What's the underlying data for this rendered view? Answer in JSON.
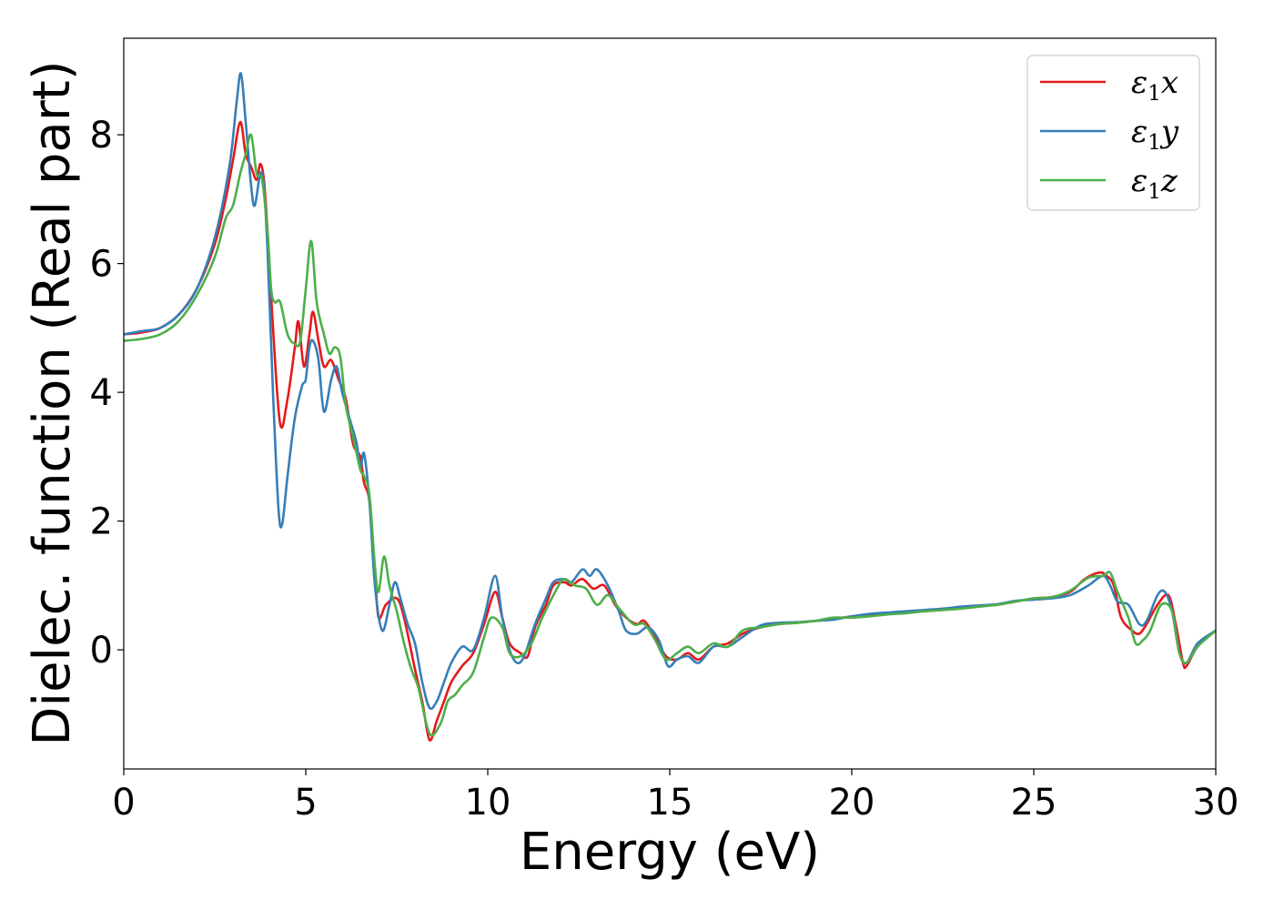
{
  "chart_data": {
    "type": "line",
    "xlabel": "Energy (eV)",
    "ylabel": "Dielec. function (Real part)",
    "xlim": [
      0,
      30
    ],
    "ylim": [
      -1.85,
      9.5
    ],
    "xticks": [
      "0",
      "5",
      "10",
      "15",
      "20",
      "25",
      "30"
    ],
    "xtick_values": [
      0,
      5,
      10,
      15,
      20,
      25,
      30
    ],
    "yticks": [
      "0",
      "2",
      "4",
      "6",
      "8"
    ],
    "ytick_values": [
      0,
      2,
      4,
      6,
      8
    ],
    "grid": false,
    "legend_position": "top-right",
    "series": [
      {
        "name": "ε₁x",
        "legend_base": "ε",
        "legend_sub": "1",
        "legend_var": "x",
        "color": "#e41a1c",
        "points": [
          [
            0,
            4.9
          ],
          [
            0.5,
            4.93
          ],
          [
            1,
            5.0
          ],
          [
            1.5,
            5.2
          ],
          [
            2,
            5.6
          ],
          [
            2.5,
            6.3
          ],
          [
            2.8,
            7.0
          ],
          [
            3.0,
            7.6
          ],
          [
            3.2,
            8.2
          ],
          [
            3.35,
            7.7
          ],
          [
            3.5,
            7.5
          ],
          [
            3.65,
            7.3
          ],
          [
            3.75,
            7.55
          ],
          [
            3.85,
            7.3
          ],
          [
            3.95,
            6.5
          ],
          [
            4.1,
            5.0
          ],
          [
            4.3,
            3.5
          ],
          [
            4.5,
            3.9
          ],
          [
            4.7,
            4.7
          ],
          [
            4.8,
            5.1
          ],
          [
            4.95,
            4.4
          ],
          [
            5.1,
            4.9
          ],
          [
            5.2,
            5.25
          ],
          [
            5.35,
            4.8
          ],
          [
            5.5,
            4.4
          ],
          [
            5.7,
            4.5
          ],
          [
            5.9,
            4.2
          ],
          [
            6.1,
            3.9
          ],
          [
            6.3,
            3.2
          ],
          [
            6.5,
            3.0
          ],
          [
            6.6,
            2.6
          ],
          [
            6.75,
            2.3
          ],
          [
            6.9,
            1.2
          ],
          [
            7.0,
            0.5
          ],
          [
            7.2,
            0.7
          ],
          [
            7.5,
            0.8
          ],
          [
            7.7,
            0.5
          ],
          [
            8.0,
            -0.3
          ],
          [
            8.2,
            -0.8
          ],
          [
            8.4,
            -1.4
          ],
          [
            8.6,
            -1.1
          ],
          [
            8.8,
            -0.8
          ],
          [
            9.0,
            -0.5
          ],
          [
            9.3,
            -0.25
          ],
          [
            9.6,
            -0.05
          ],
          [
            9.9,
            0.4
          ],
          [
            10.2,
            0.9
          ],
          [
            10.4,
            0.5
          ],
          [
            10.6,
            0.1
          ],
          [
            10.9,
            -0.05
          ],
          [
            11.1,
            -0.1
          ],
          [
            11.3,
            0.35
          ],
          [
            11.6,
            0.7
          ],
          [
            11.8,
            1.0
          ],
          [
            12.1,
            1.05
          ],
          [
            12.3,
            1.0
          ],
          [
            12.6,
            1.1
          ],
          [
            12.9,
            0.95
          ],
          [
            13.2,
            1.0
          ],
          [
            13.5,
            0.7
          ],
          [
            13.8,
            0.5
          ],
          [
            14.1,
            0.4
          ],
          [
            14.3,
            0.45
          ],
          [
            14.6,
            0.2
          ],
          [
            14.9,
            -0.1
          ],
          [
            15.2,
            -0.15
          ],
          [
            15.5,
            -0.05
          ],
          [
            15.8,
            -0.15
          ],
          [
            16.2,
            0.05
          ],
          [
            16.6,
            0.1
          ],
          [
            17.0,
            0.25
          ],
          [
            17.5,
            0.35
          ],
          [
            18,
            0.4
          ],
          [
            18.5,
            0.42
          ],
          [
            19,
            0.45
          ],
          [
            19.5,
            0.48
          ],
          [
            20,
            0.52
          ],
          [
            20.5,
            0.55
          ],
          [
            21,
            0.57
          ],
          [
            21.5,
            0.58
          ],
          [
            22,
            0.6
          ],
          [
            22.5,
            0.62
          ],
          [
            23,
            0.65
          ],
          [
            23.5,
            0.68
          ],
          [
            24,
            0.7
          ],
          [
            24.5,
            0.75
          ],
          [
            25,
            0.8
          ],
          [
            25.5,
            0.82
          ],
          [
            26,
            0.9
          ],
          [
            26.4,
            1.1
          ],
          [
            26.8,
            1.2
          ],
          [
            27.0,
            1.15
          ],
          [
            27.2,
            1.0
          ],
          [
            27.4,
            0.5
          ],
          [
            27.7,
            0.3
          ],
          [
            27.9,
            0.25
          ],
          [
            28.1,
            0.4
          ],
          [
            28.4,
            0.7
          ],
          [
            28.7,
            0.85
          ],
          [
            28.9,
            0.4
          ],
          [
            29.1,
            -0.2
          ],
          [
            29.2,
            -0.25
          ],
          [
            29.5,
            0.05
          ],
          [
            30,
            0.3
          ]
        ]
      },
      {
        "name": "ε₁y",
        "legend_base": "ε",
        "legend_sub": "1",
        "legend_var": "y",
        "color": "#377eb8",
        "points": [
          [
            0,
            4.9
          ],
          [
            0.5,
            4.95
          ],
          [
            1,
            5.0
          ],
          [
            1.5,
            5.2
          ],
          [
            2,
            5.6
          ],
          [
            2.5,
            6.4
          ],
          [
            2.9,
            7.5
          ],
          [
            3.1,
            8.5
          ],
          [
            3.22,
            8.95
          ],
          [
            3.35,
            8.2
          ],
          [
            3.5,
            7.2
          ],
          [
            3.6,
            6.9
          ],
          [
            3.75,
            7.4
          ],
          [
            3.85,
            7.2
          ],
          [
            3.95,
            6.2
          ],
          [
            4.1,
            4.0
          ],
          [
            4.25,
            2.2
          ],
          [
            4.35,
            1.95
          ],
          [
            4.5,
            2.7
          ],
          [
            4.7,
            3.6
          ],
          [
            4.9,
            4.1
          ],
          [
            5.0,
            4.2
          ],
          [
            5.1,
            4.7
          ],
          [
            5.2,
            4.8
          ],
          [
            5.35,
            4.5
          ],
          [
            5.5,
            3.7
          ],
          [
            5.7,
            4.2
          ],
          [
            5.85,
            4.4
          ],
          [
            6.0,
            4.0
          ],
          [
            6.2,
            3.6
          ],
          [
            6.4,
            3.2
          ],
          [
            6.5,
            2.8
          ],
          [
            6.6,
            3.05
          ],
          [
            6.75,
            2.3
          ],
          [
            6.9,
            1.0
          ],
          [
            7.1,
            0.3
          ],
          [
            7.3,
            0.7
          ],
          [
            7.45,
            1.05
          ],
          [
            7.6,
            0.8
          ],
          [
            7.8,
            0.4
          ],
          [
            8.0,
            0.1
          ],
          [
            8.2,
            -0.5
          ],
          [
            8.4,
            -0.9
          ],
          [
            8.6,
            -0.8
          ],
          [
            8.8,
            -0.5
          ],
          [
            9.0,
            -0.2
          ],
          [
            9.3,
            0.05
          ],
          [
            9.6,
            0.0
          ],
          [
            9.9,
            0.5
          ],
          [
            10.2,
            1.15
          ],
          [
            10.4,
            0.5
          ],
          [
            10.6,
            0.0
          ],
          [
            10.8,
            -0.2
          ],
          [
            11.0,
            -0.1
          ],
          [
            11.3,
            0.4
          ],
          [
            11.6,
            0.8
          ],
          [
            11.8,
            1.05
          ],
          [
            12.1,
            1.1
          ],
          [
            12.3,
            1.05
          ],
          [
            12.6,
            1.25
          ],
          [
            12.8,
            1.15
          ],
          [
            13.0,
            1.25
          ],
          [
            13.3,
            1.0
          ],
          [
            13.6,
            0.6
          ],
          [
            13.8,
            0.3
          ],
          [
            14.1,
            0.25
          ],
          [
            14.4,
            0.35
          ],
          [
            14.7,
            0.15
          ],
          [
            14.95,
            -0.25
          ],
          [
            15.2,
            -0.15
          ],
          [
            15.5,
            -0.1
          ],
          [
            15.8,
            -0.2
          ],
          [
            16.2,
            0.05
          ],
          [
            16.6,
            0.05
          ],
          [
            17.0,
            0.2
          ],
          [
            17.5,
            0.38
          ],
          [
            18,
            0.42
          ],
          [
            18.5,
            0.43
          ],
          [
            19,
            0.45
          ],
          [
            19.5,
            0.47
          ],
          [
            20,
            0.52
          ],
          [
            20.5,
            0.56
          ],
          [
            21,
            0.58
          ],
          [
            21.5,
            0.6
          ],
          [
            22,
            0.62
          ],
          [
            22.5,
            0.64
          ],
          [
            23,
            0.67
          ],
          [
            23.5,
            0.69
          ],
          [
            24,
            0.71
          ],
          [
            24.5,
            0.76
          ],
          [
            25,
            0.78
          ],
          [
            25.5,
            0.8
          ],
          [
            26,
            0.85
          ],
          [
            26.5,
            1.0
          ],
          [
            26.9,
            1.15
          ],
          [
            27.1,
            1.0
          ],
          [
            27.3,
            0.75
          ],
          [
            27.6,
            0.7
          ],
          [
            27.9,
            0.4
          ],
          [
            28.1,
            0.45
          ],
          [
            28.4,
            0.85
          ],
          [
            28.6,
            0.9
          ],
          [
            28.8,
            0.6
          ],
          [
            29.0,
            -0.05
          ],
          [
            29.2,
            -0.2
          ],
          [
            29.5,
            0.1
          ],
          [
            30,
            0.3
          ]
        ]
      },
      {
        "name": "ε₁z",
        "legend_base": "ε",
        "legend_sub": "1",
        "legend_var": "z",
        "color": "#4daf4a",
        "points": [
          [
            0,
            4.8
          ],
          [
            0.5,
            4.83
          ],
          [
            1,
            4.9
          ],
          [
            1.5,
            5.1
          ],
          [
            2,
            5.5
          ],
          [
            2.5,
            6.1
          ],
          [
            2.8,
            6.7
          ],
          [
            3.0,
            6.9
          ],
          [
            3.2,
            7.4
          ],
          [
            3.35,
            7.7
          ],
          [
            3.5,
            8.0
          ],
          [
            3.65,
            7.4
          ],
          [
            3.8,
            7.3
          ],
          [
            3.95,
            6.5
          ],
          [
            4.05,
            5.6
          ],
          [
            4.15,
            5.4
          ],
          [
            4.3,
            5.4
          ],
          [
            4.5,
            4.9
          ],
          [
            4.7,
            4.75
          ],
          [
            4.85,
            4.8
          ],
          [
            5.0,
            5.6
          ],
          [
            5.15,
            6.35
          ],
          [
            5.3,
            5.4
          ],
          [
            5.5,
            4.9
          ],
          [
            5.65,
            4.6
          ],
          [
            5.8,
            4.7
          ],
          [
            5.95,
            4.55
          ],
          [
            6.1,
            3.8
          ],
          [
            6.3,
            3.3
          ],
          [
            6.5,
            2.8
          ],
          [
            6.6,
            2.7
          ],
          [
            6.75,
            2.4
          ],
          [
            6.9,
            1.3
          ],
          [
            7.0,
            0.9
          ],
          [
            7.15,
            1.45
          ],
          [
            7.3,
            1.0
          ],
          [
            7.5,
            0.6
          ],
          [
            7.7,
            0.1
          ],
          [
            7.9,
            -0.3
          ],
          [
            8.1,
            -0.6
          ],
          [
            8.4,
            -1.3
          ],
          [
            8.7,
            -1.15
          ],
          [
            8.9,
            -0.8
          ],
          [
            9.1,
            -0.7
          ],
          [
            9.3,
            -0.55
          ],
          [
            9.6,
            -0.35
          ],
          [
            9.9,
            0.2
          ],
          [
            10.1,
            0.5
          ],
          [
            10.4,
            0.35
          ],
          [
            10.6,
            -0.05
          ],
          [
            10.9,
            -0.1
          ],
          [
            11.2,
            0.1
          ],
          [
            11.5,
            0.5
          ],
          [
            11.9,
            0.95
          ],
          [
            12.1,
            1.1
          ],
          [
            12.4,
            1.0
          ],
          [
            12.7,
            0.95
          ],
          [
            13.0,
            0.7
          ],
          [
            13.3,
            0.85
          ],
          [
            13.6,
            0.65
          ],
          [
            14.0,
            0.4
          ],
          [
            14.3,
            0.4
          ],
          [
            14.6,
            0.15
          ],
          [
            14.9,
            -0.15
          ],
          [
            15.2,
            -0.05
          ],
          [
            15.5,
            0.05
          ],
          [
            15.8,
            -0.05
          ],
          [
            16.2,
            0.1
          ],
          [
            16.6,
            0.05
          ],
          [
            17.0,
            0.3
          ],
          [
            17.5,
            0.35
          ],
          [
            18,
            0.4
          ],
          [
            18.5,
            0.42
          ],
          [
            19,
            0.45
          ],
          [
            19.5,
            0.5
          ],
          [
            20,
            0.5
          ],
          [
            20.5,
            0.52
          ],
          [
            21,
            0.55
          ],
          [
            21.5,
            0.57
          ],
          [
            22,
            0.6
          ],
          [
            22.5,
            0.62
          ],
          [
            23,
            0.64
          ],
          [
            23.5,
            0.67
          ],
          [
            24,
            0.7
          ],
          [
            24.5,
            0.75
          ],
          [
            25,
            0.8
          ],
          [
            25.5,
            0.82
          ],
          [
            26,
            0.92
          ],
          [
            26.5,
            1.12
          ],
          [
            26.9,
            1.15
          ],
          [
            27.1,
            1.2
          ],
          [
            27.3,
            0.9
          ],
          [
            27.6,
            0.5
          ],
          [
            27.8,
            0.1
          ],
          [
            28.0,
            0.15
          ],
          [
            28.2,
            0.3
          ],
          [
            28.5,
            0.7
          ],
          [
            28.8,
            0.6
          ],
          [
            29.0,
            -0.05
          ],
          [
            29.2,
            -0.2
          ],
          [
            29.5,
            0.05
          ],
          [
            30,
            0.3
          ]
        ]
      }
    ]
  }
}
